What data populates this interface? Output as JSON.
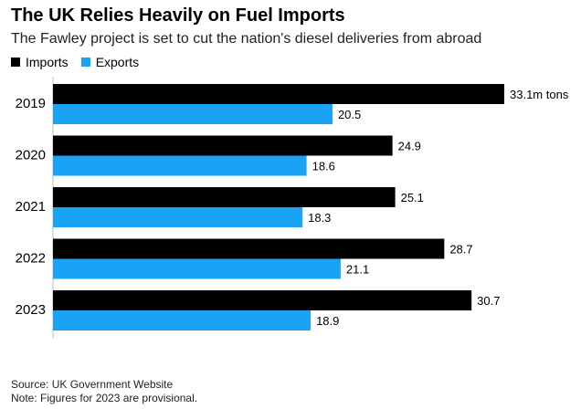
{
  "title": "The UK Relies Heavily on Fuel Imports",
  "subtitle": "The Fawley project is set to cut the nation's diesel deliveries from abroad",
  "legend": {
    "imports_label": "Imports",
    "exports_label": "Exports"
  },
  "colors": {
    "imports": "#000000",
    "exports": "#1aa3f5"
  },
  "footer": {
    "source": "Source: UK Government Website",
    "note": "Note: Figures for 2023 are provisional."
  },
  "chart_data": {
    "type": "bar",
    "orientation": "horizontal",
    "categories": [
      "2019",
      "2020",
      "2021",
      "2022",
      "2023"
    ],
    "series": [
      {
        "name": "Imports",
        "values": [
          33.1,
          24.9,
          25.1,
          28.7,
          30.7
        ],
        "labels": [
          "33.1m tons",
          "24.9",
          "25.1",
          "28.7",
          "30.7"
        ]
      },
      {
        "name": "Exports",
        "values": [
          20.5,
          18.6,
          18.3,
          21.1,
          18.9
        ],
        "labels": [
          "20.5",
          "18.6",
          "18.3",
          "21.1",
          "18.9"
        ]
      }
    ],
    "unit": "m tons",
    "xlim": [
      0,
      33.1
    ],
    "grid": false,
    "legend_position": "top-left"
  }
}
